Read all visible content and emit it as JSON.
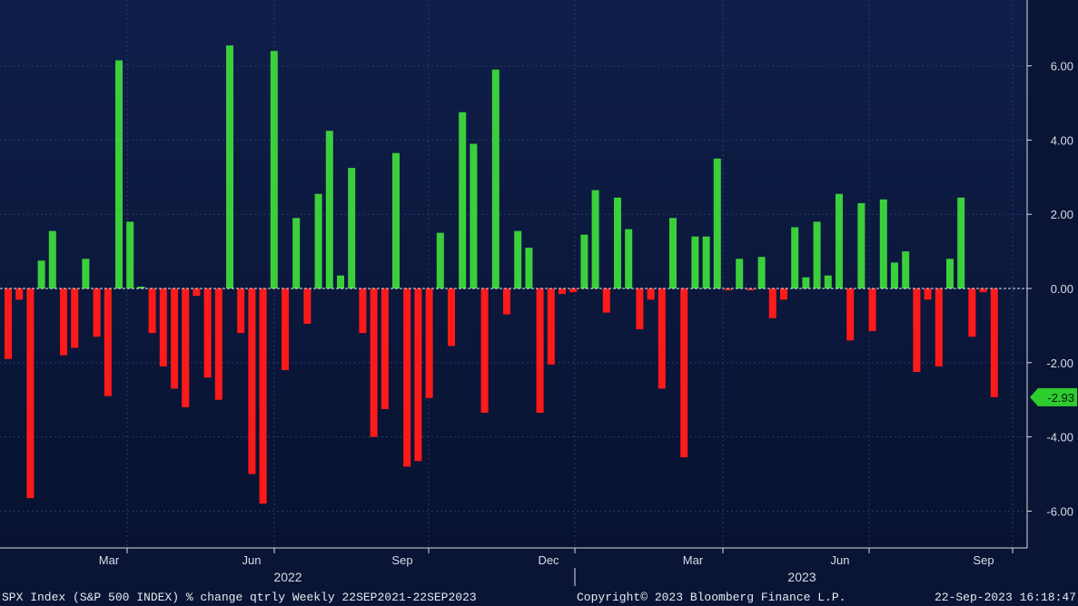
{
  "colors": {
    "background": "#0a1535",
    "plot_bg_top": "#0f1f4a",
    "plot_bg_bottom": "#081230",
    "grid": "#2a3a66",
    "positive": "#3ccf3c",
    "negative": "#ff1a1a",
    "zero_line": "#e0e4ee",
    "callout": "#2ecc2e"
  },
  "chart_data": {
    "type": "bar",
    "ylim": [
      -7.0,
      7.5
    ],
    "yticks": [
      -6,
      -4,
      -2,
      0,
      2,
      4,
      6
    ],
    "ytick_labels": [
      "-6.00",
      "-4.00",
      "-2.00",
      "0.00",
      "2.00",
      "4.00",
      "6.00"
    ],
    "grid": true,
    "month_labels": [
      "Mar",
      "Jun",
      "Sep",
      "Dec",
      "Mar",
      "Jun",
      "Sep"
    ],
    "year_labels": [
      "2022",
      "2023"
    ],
    "last_value_label": "-2.93",
    "values": [
      -1.9,
      -0.3,
      -5.65,
      0.75,
      1.55,
      -1.8,
      -1.6,
      0.8,
      -1.3,
      -2.9,
      6.15,
      1.8,
      0.05,
      -1.2,
      -2.1,
      -2.7,
      -3.2,
      -0.2,
      -2.4,
      -3.0,
      6.55,
      -1.2,
      -5.0,
      -5.8,
      6.4,
      -2.2,
      1.9,
      -0.95,
      2.55,
      4.25,
      0.35,
      3.25,
      -1.2,
      -4.0,
      -3.25,
      3.65,
      -4.8,
      -4.65,
      -2.95,
      1.5,
      -1.55,
      4.75,
      3.9,
      -3.35,
      5.9,
      -0.7,
      1.55,
      1.1,
      -3.35,
      -2.05,
      -0.15,
      -0.1,
      1.45,
      2.65,
      -0.65,
      2.45,
      1.6,
      -1.1,
      -0.3,
      -2.7,
      1.9,
      -4.55,
      1.4,
      1.4,
      3.5,
      -0.05,
      0.8,
      -0.05,
      0.85,
      -0.8,
      -0.3,
      1.65,
      0.3,
      1.8,
      0.35,
      2.55,
      -1.4,
      2.3,
      -1.15,
      2.4,
      0.7,
      1.0,
      -2.25,
      -0.3,
      -2.1,
      0.8,
      2.45,
      -1.3,
      -0.1,
      -2.93
    ]
  },
  "footer": {
    "left": "SPX Index (S&P 500 INDEX) % change qtrly  Weekly 22SEP2021-22SEP2023",
    "center": "Copyright© 2023 Bloomberg Finance L.P.",
    "right": "22-Sep-2023 16:18:47"
  }
}
